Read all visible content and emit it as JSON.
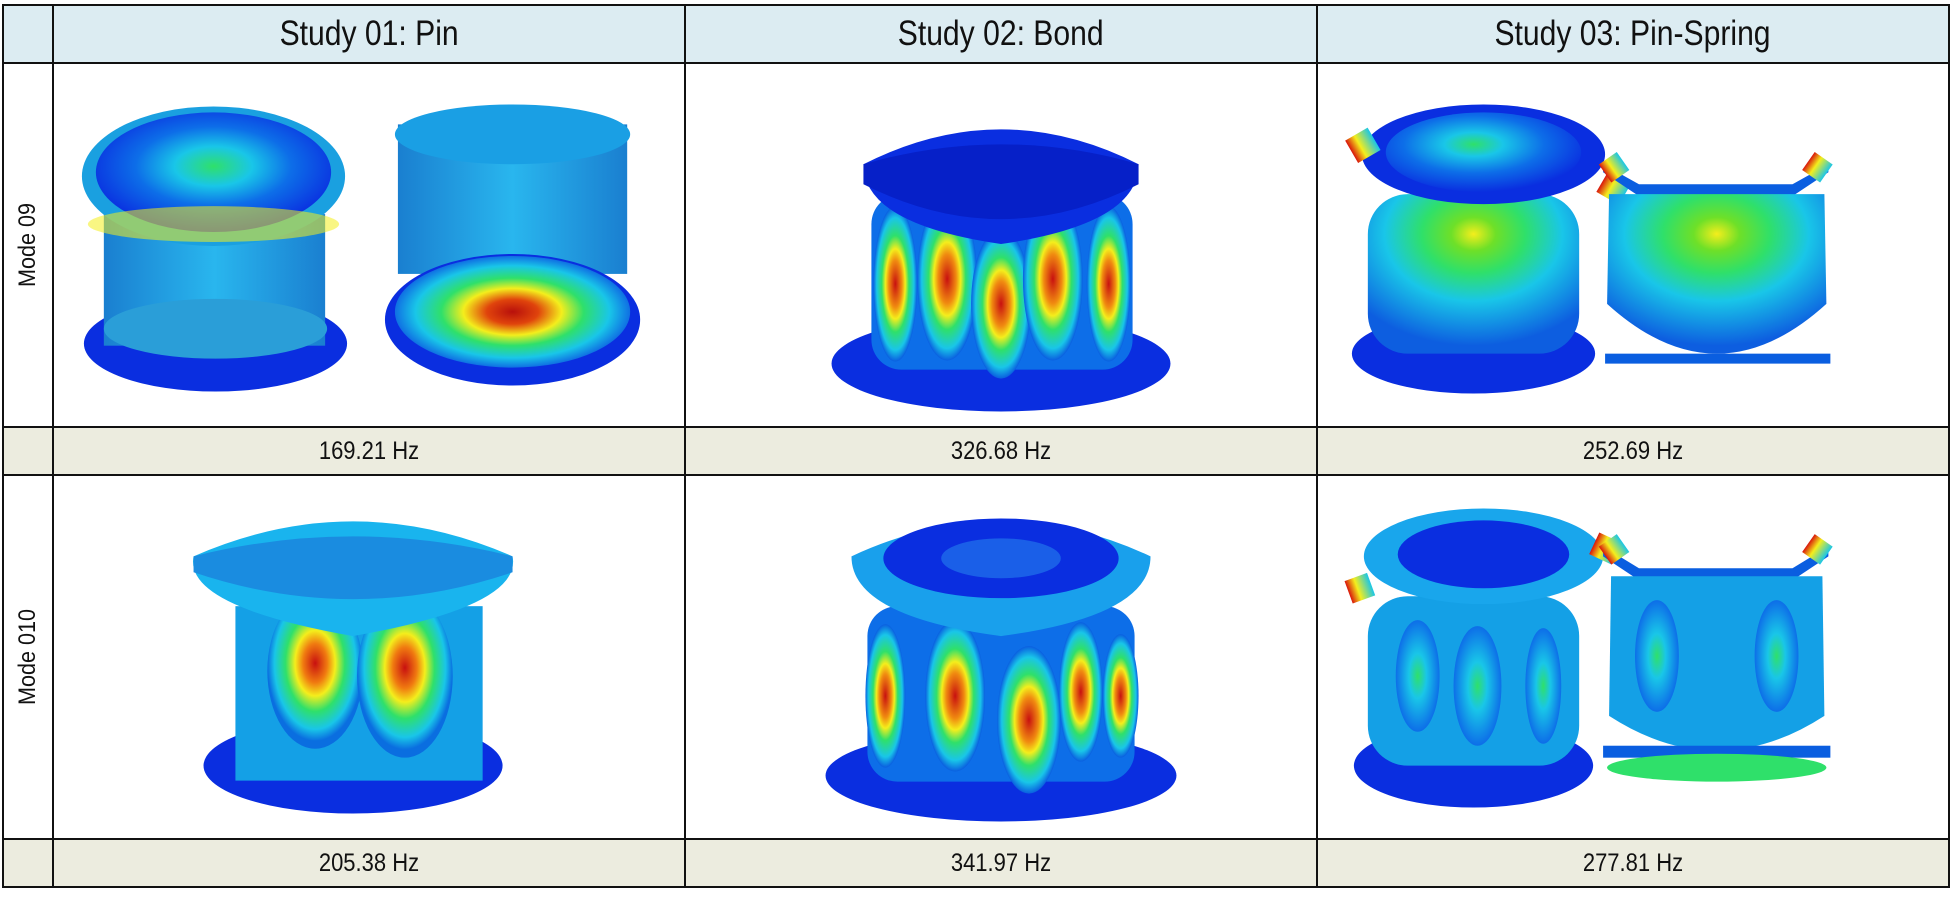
{
  "columns": [
    {
      "title": "Study 01: Pin"
    },
    {
      "title": "Study 02: Bond"
    },
    {
      "title": "Study 03: Pin-Spring"
    }
  ],
  "rows": [
    {
      "label": "Mode 09",
      "frequencies": [
        "169.21 Hz",
        "326.68 Hz",
        "252.69 Hz"
      ]
    },
    {
      "label": "Mode 010",
      "frequencies": [
        "205.38 Hz",
        "341.97 Hz",
        "277.81 Hz"
      ]
    }
  ],
  "colors": {
    "header_bg": "#dcecf2",
    "freq_bg": "#ececdf",
    "fem_blue": "#0a2ee0",
    "fem_cyan": "#19c6e8",
    "fem_green": "#2fe06a",
    "fem_yellow": "#f4ee1c",
    "fem_red": "#d9140c"
  }
}
